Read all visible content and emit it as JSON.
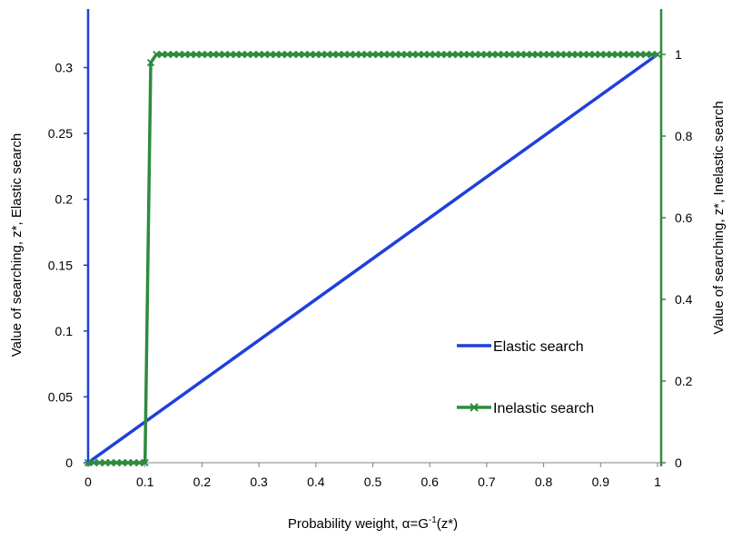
{
  "chart_data": {
    "type": "line",
    "xlabel_main": "Probability weight, α=G",
    "xlabel_sup": "-1",
    "xlabel_tail": "(z*)",
    "ylabel_left": "Value of searching, z*, Elastic search",
    "ylabel_right": "Value of searching, z*, Inelastic search",
    "xlim": [
      0,
      1
    ],
    "ylim_left": [
      0,
      0.31
    ],
    "ylim_right": [
      0,
      1
    ],
    "x_ticks": [
      "0",
      "0.1",
      "0.2",
      "0.3",
      "0.4",
      "0.5",
      "0.6",
      "0.7",
      "0.8",
      "0.9",
      "1"
    ],
    "y_left_ticks": [
      "0",
      "0.05",
      "0.1",
      "0.15",
      "0.2",
      "0.25",
      "0.3"
    ],
    "y_right_ticks": [
      "0",
      "0.2",
      "0.4",
      "0.6",
      "0.8",
      "1"
    ],
    "legend_position": "lower-right",
    "series": [
      {
        "name": "Elastic search",
        "axis": "left",
        "color": "#1f3fdc",
        "marker": "none",
        "x": [
          0,
          1
        ],
        "y": [
          0,
          0.31
        ]
      },
      {
        "name": "Inelastic search",
        "axis": "right",
        "color": "#2e8b3e",
        "marker": "x",
        "x": [
          0,
          0.01,
          0.02,
          0.03,
          0.04,
          0.05,
          0.06,
          0.07,
          0.08,
          0.09,
          0.1,
          0.11,
          0.12,
          0.13,
          0.14,
          0.15,
          0.16,
          0.17,
          0.18,
          0.19,
          0.2,
          0.21,
          0.22,
          0.23,
          0.24,
          0.25,
          0.26,
          0.27,
          0.28,
          0.29,
          0.3,
          0.31,
          0.32,
          0.33,
          0.34,
          0.35,
          0.36,
          0.37,
          0.38,
          0.39,
          0.4,
          0.41,
          0.42,
          0.43,
          0.44,
          0.45,
          0.46,
          0.47,
          0.48,
          0.49,
          0.5,
          0.51,
          0.52,
          0.53,
          0.54,
          0.55,
          0.56,
          0.57,
          0.58,
          0.59,
          0.6,
          0.61,
          0.62,
          0.63,
          0.64,
          0.65,
          0.66,
          0.67,
          0.68,
          0.69,
          0.7,
          0.71,
          0.72,
          0.73,
          0.74,
          0.75,
          0.76,
          0.77,
          0.78,
          0.79,
          0.8,
          0.81,
          0.82,
          0.83,
          0.84,
          0.85,
          0.86,
          0.87,
          0.88,
          0.89,
          0.9,
          0.91,
          0.92,
          0.93,
          0.94,
          0.95,
          0.96,
          0.97,
          0.98,
          0.99,
          1
        ],
        "y": [
          0,
          0,
          0,
          0,
          0,
          0,
          0,
          0,
          0,
          0,
          0,
          0.98,
          1,
          1,
          1,
          1,
          1,
          1,
          1,
          1,
          1,
          1,
          1,
          1,
          1,
          1,
          1,
          1,
          1,
          1,
          1,
          1,
          1,
          1,
          1,
          1,
          1,
          1,
          1,
          1,
          1,
          1,
          1,
          1,
          1,
          1,
          1,
          1,
          1,
          1,
          1,
          1,
          1,
          1,
          1,
          1,
          1,
          1,
          1,
          1,
          1,
          1,
          1,
          1,
          1,
          1,
          1,
          1,
          1,
          1,
          1,
          1,
          1,
          1,
          1,
          1,
          1,
          1,
          1,
          1,
          1,
          1,
          1,
          1,
          1,
          1,
          1,
          1,
          1,
          1,
          1,
          1,
          1,
          1,
          1,
          1,
          1,
          1,
          1,
          1,
          1
        ]
      }
    ]
  }
}
